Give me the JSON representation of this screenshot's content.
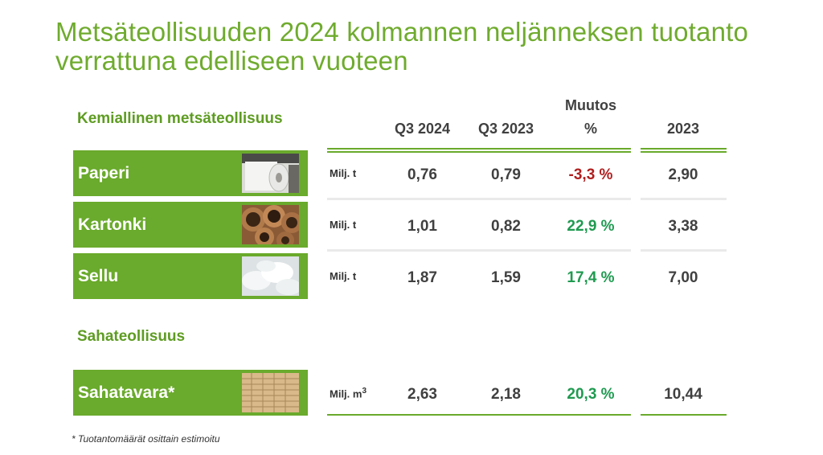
{
  "title": "Metsäteollisuuden 2024 kolmannen neljänneksen tuotanto verrattuna edelliseen vuoteen",
  "sections": {
    "chemical": "Kemiallinen metsäteollisuus",
    "sawmill": "Sahateollisuus"
  },
  "columns": {
    "q3_2024": "Q3 2024",
    "q3_2023": "Q3 2023",
    "change_top": "Muutos",
    "change_bottom": "%",
    "year_2023": "2023"
  },
  "rows": [
    {
      "label": "Paperi",
      "unit": "Milj. t",
      "q3_2024": "0,76",
      "q3_2023": "0,79",
      "change": "-3,3 %",
      "year_2023": "2,90",
      "image": "paper-roll-image"
    },
    {
      "label": "Kartonki",
      "unit": "Milj. t",
      "q3_2024": "1,01",
      "q3_2023": "0,82",
      "change": "22,9 %",
      "year_2023": "3,38",
      "image": "cardboard-tubes-image"
    },
    {
      "label": "Sellu",
      "unit": "Milj. t",
      "q3_2024": "1,87",
      "q3_2023": "1,59",
      "change": "17,4 %",
      "year_2023": "7,00",
      "image": "pulp-fibers-image"
    },
    {
      "label": "Sahatavara*",
      "unit": "Milj. m",
      "unit_sup": "3",
      "q3_2024": "2,63",
      "q3_2023": "2,18",
      "change": "20,3 %",
      "year_2023": "10,44",
      "image": "lumber-stack-image"
    }
  ],
  "colors": {
    "accent": "#6aaa2c",
    "negative": "#b01e1e",
    "positive": "#1f9a50"
  },
  "footnote": "* Tuotantomäärät osittain estimoitu"
}
